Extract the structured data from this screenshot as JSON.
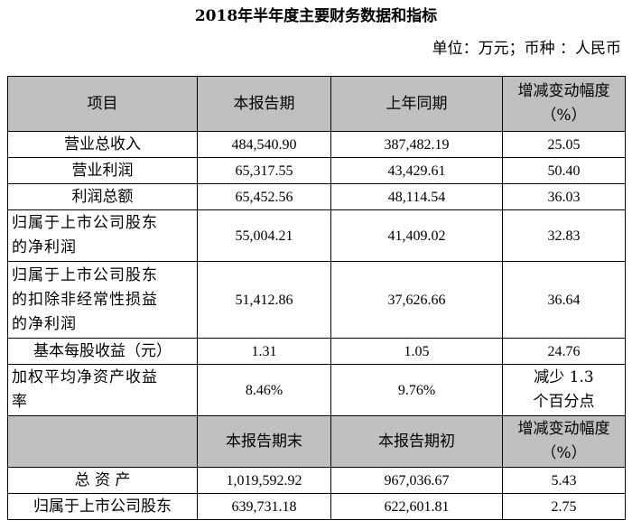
{
  "title": "2018年半年度主要财务数据和指标",
  "unit": "单位：万元；币种 ：人民币",
  "header1": {
    "item": "项目",
    "current": "本报告期",
    "prior": "上年同期",
    "change_line1": "增减变动幅度",
    "change_line2": "（%）"
  },
  "rows1": [
    {
      "label": "营业总收入",
      "current": "484,540.90",
      "prior": "387,482.19",
      "change": "25.05"
    },
    {
      "label": "营业利润",
      "current": "65,317.55",
      "prior": "43,429.61",
      "change": "50.40"
    },
    {
      "label": "利润总额",
      "current": "65,452.56",
      "prior": "48,114.54",
      "change": "36.03"
    },
    {
      "label_lines": [
        "归属于上市公司股东",
        "的净利润"
      ],
      "current": "55,004.21",
      "prior": "41,409.02",
      "change": "32.83"
    },
    {
      "label_lines": [
        "归属于上市公司股东",
        "的扣除非经常性损益",
        "的净利润"
      ],
      "current": "51,412.86",
      "prior": "37,626.66",
      "change": "36.64"
    },
    {
      "label": "基本每股收益（元）",
      "current": "1.31",
      "prior": "1.05",
      "change": "24.76"
    },
    {
      "label_lines": [
        "加权平均净资产收益",
        "率"
      ],
      "current": "8.46%",
      "prior": "9.76%",
      "change_lines": [
        "减少 1.3",
        "个百分点"
      ]
    }
  ],
  "header2": {
    "item": "",
    "current": "本报告期末",
    "prior": "本报告期初",
    "change_line1": "增减变动幅度",
    "change_line2": "（%）"
  },
  "rows2": [
    {
      "label": "总 资 产",
      "current": "1,019,592.92",
      "prior": "967,036.67",
      "change": "5.43"
    },
    {
      "label": "归属于上市公司股东",
      "current": "639,731.18",
      "prior": "622,601.81",
      "change": "2.75"
    }
  ]
}
